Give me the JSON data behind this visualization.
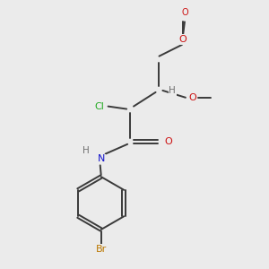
{
  "bg_color": "#ebebeb",
  "bond_color": "#3a3a3a",
  "atom_colors": {
    "Cl": "#22aa22",
    "O": "#cc1111",
    "N": "#1111cc",
    "Br": "#bb7700",
    "H": "#707070",
    "C": "#3a3a3a"
  },
  "bond_width": 1.4,
  "font_size": 7.5
}
